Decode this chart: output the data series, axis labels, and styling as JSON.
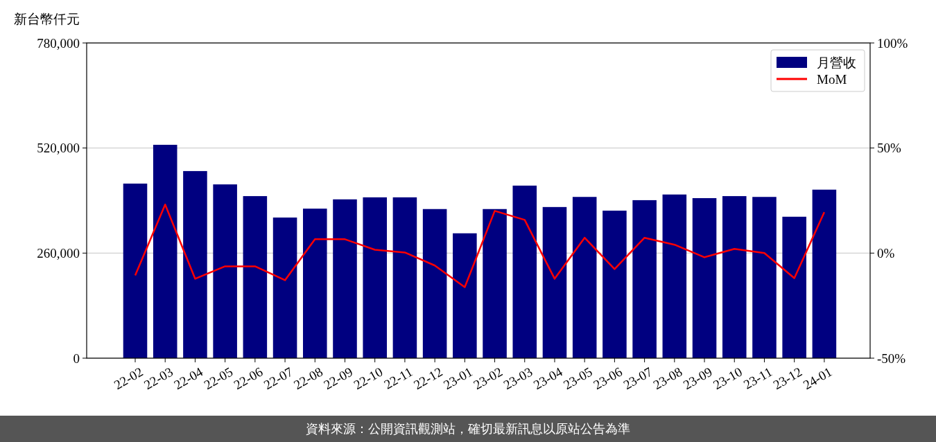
{
  "chart_data": {
    "type": "bar",
    "ylabel": "新台幣仟元",
    "categories": [
      "22-02",
      "22-03",
      "22-04",
      "22-05",
      "22-06",
      "22-07",
      "22-08",
      "22-09",
      "22-10",
      "22-11",
      "22-12",
      "23-01",
      "23-02",
      "23-03",
      "23-04",
      "23-05",
      "23-06",
      "23-07",
      "23-08",
      "23-09",
      "23-10",
      "23-11",
      "23-12",
      "24-01"
    ],
    "series": [
      {
        "name": "月營收",
        "color": "#000080",
        "values": [
          432000,
          528000,
          463000,
          430000,
          401000,
          348000,
          370000,
          393000,
          398000,
          398000,
          369000,
          309000,
          369000,
          427000,
          374000,
          399000,
          365000,
          391000,
          405000,
          396000,
          401000,
          399000,
          350000,
          417000
        ]
      },
      {
        "name": "MoM",
        "type": "line",
        "axis": "y2",
        "color": "#ff0000",
        "values": [
          -10.6,
          23.1,
          -12.2,
          -6.3,
          -6.3,
          -12.9,
          6.6,
          6.6,
          1.6,
          0.3,
          -5.9,
          -16.2,
          20.1,
          15.8,
          -12.2,
          7.3,
          -7.6,
          7.3,
          4.0,
          -2.0,
          2.0,
          0,
          -11.9,
          19.5
        ]
      }
    ],
    "ylim": [
      0,
      780000
    ],
    "yticks": [
      0,
      {
        "value": 260000,
        "label": "260,000"
      },
      {
        "value": 520000,
        "label": "520,000"
      },
      {
        "value": 780000,
        "label": "780,000"
      }
    ],
    "y2lim": [
      -50,
      100
    ],
    "y2ticks": [
      {
        "value": -50,
        "label": "-50%"
      },
      {
        "value": 0,
        "label": "0%"
      },
      {
        "value": 50,
        "label": "50%"
      },
      {
        "value": 100,
        "label": "100%"
      }
    ],
    "grid": "y",
    "legend": "top right",
    "marker": "none",
    "line_style": "solid",
    "annotations": [
      "資料來源：公開資訊觀測站，確切最新訊息以原站公告為準"
    ]
  }
}
